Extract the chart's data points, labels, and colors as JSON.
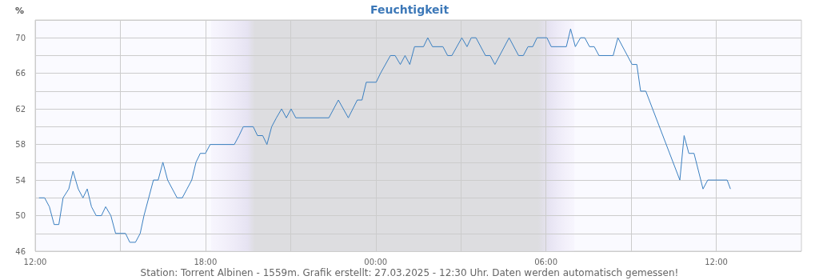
{
  "chart_data": {
    "type": "line",
    "title": "Feuchtigkeit",
    "ylabel": "%",
    "annotations": [
      "Station: Torrent Albinen - 1559m. Grafik erstellt: 27.03.2025 - 12:30 Uhr. Daten werden automatisch gemessen!"
    ],
    "series": [
      {
        "color": "#3a7fc0",
        "x": [
          "2025-03-26T12:08",
          "2025-03-26T12:20",
          "2025-03-26T12:30",
          "2025-03-26T12:40",
          "2025-03-26T12:50",
          "2025-03-26T12:59",
          "2025-03-26T13:11",
          "2025-03-26T13:20",
          "2025-03-26T13:31",
          "2025-03-26T13:41",
          "2025-03-26T13:50",
          "2025-03-26T13:59",
          "2025-03-26T14:09",
          "2025-03-26T14:20",
          "2025-03-26T14:29",
          "2025-03-26T14:40",
          "2025-03-26T14:50",
          "2025-03-26T15:11",
          "2025-03-26T15:20",
          "2025-03-26T15:32",
          "2025-03-26T15:42",
          "2025-03-26T15:50",
          "2025-03-26T16:00",
          "2025-03-26T16:10",
          "2025-03-26T16:20",
          "2025-03-26T16:30",
          "2025-03-26T16:40",
          "2025-03-26T17:00",
          "2025-03-26T17:11",
          "2025-03-26T17:21",
          "2025-03-26T17:31",
          "2025-03-26T17:40",
          "2025-03-26T17:49",
          "2025-03-26T18:00",
          "2025-03-26T18:10",
          "2025-03-26T19:01",
          "2025-03-26T19:11",
          "2025-03-26T19:20",
          "2025-03-26T19:41",
          "2025-03-26T19:50",
          "2025-03-26T20:01",
          "2025-03-26T20:10",
          "2025-03-26T20:20",
          "2025-03-26T20:30",
          "2025-03-26T20:41",
          "2025-03-26T20:51",
          "2025-03-26T21:01",
          "2025-03-26T21:11",
          "2025-03-26T22:21",
          "2025-03-26T22:41",
          "2025-03-26T23:02",
          "2025-03-26T23:21",
          "2025-03-26T23:31",
          "2025-03-26T23:40",
          "2025-03-27T00:01",
          "2025-03-27T00:10",
          "2025-03-27T00:31",
          "2025-03-27T00:41",
          "2025-03-27T00:52",
          "2025-03-27T01:02",
          "2025-03-27T01:12",
          "2025-03-27T01:22",
          "2025-03-27T01:41",
          "2025-03-27T01:50",
          "2025-03-27T02:00",
          "2025-03-27T02:22",
          "2025-03-27T02:32",
          "2025-03-27T02:41",
          "2025-03-27T03:02",
          "2025-03-27T03:13",
          "2025-03-27T03:22",
          "2025-03-27T03:32",
          "2025-03-27T03:52",
          "2025-03-27T04:02",
          "2025-03-27T04:12",
          "2025-03-27T04:42",
          "2025-03-27T05:02",
          "2025-03-27T05:12",
          "2025-03-27T05:22",
          "2025-03-27T05:32",
          "2025-03-27T05:41",
          "2025-03-27T06:02",
          "2025-03-27T06:11",
          "2025-03-27T06:43",
          "2025-03-27T06:52",
          "2025-03-27T07:02",
          "2025-03-27T07:13",
          "2025-03-27T07:22",
          "2025-03-27T07:32",
          "2025-03-27T07:42",
          "2025-03-27T07:52",
          "2025-03-27T08:22",
          "2025-03-27T08:32",
          "2025-03-27T09:02",
          "2025-03-27T09:12",
          "2025-03-27T09:20",
          "2025-03-27T09:31",
          "2025-03-27T10:43",
          "2025-03-27T10:52",
          "2025-03-27T11:02",
          "2025-03-27T11:13",
          "2025-03-27T11:32",
          "2025-03-27T11:42",
          "2025-03-27T12:23",
          "2025-03-27T12:30"
        ],
        "values": [
          52,
          52,
          51,
          49,
          49,
          52,
          53,
          55,
          53,
          52,
          53,
          51,
          50,
          50,
          51,
          50,
          48,
          48,
          47,
          47,
          48,
          50,
          52,
          54,
          54,
          56,
          54,
          52,
          52,
          53,
          54,
          56,
          57,
          57,
          58,
          58,
          59,
          60,
          60,
          59,
          59,
          58,
          60,
          61,
          62,
          61,
          62,
          61,
          61,
          63,
          61,
          63,
          63,
          65,
          65,
          66,
          68,
          68,
          67,
          68,
          67,
          69,
          69,
          70,
          69,
          69,
          68,
          68,
          70,
          69,
          70,
          70,
          68,
          68,
          67,
          70,
          68,
          68,
          69,
          69,
          70,
          70,
          69,
          69,
          71,
          69,
          70,
          70,
          69,
          69,
          68,
          68,
          70,
          67,
          67,
          64,
          64,
          54,
          59,
          57,
          57,
          53,
          54,
          54,
          53
        ]
      }
    ],
    "xlim": [
      "2025-03-26T12:00",
      "2025-03-27T15:00"
    ],
    "xticks": [
      {
        "value": "2025-03-26T12:00",
        "label": "12:00"
      },
      {
        "value": "2025-03-26T15:00",
        "label": null
      },
      {
        "value": "2025-03-26T18:00",
        "label": "18:00"
      },
      {
        "value": "2025-03-26T21:00",
        "label": null
      },
      {
        "value": "2025-03-27T00:00",
        "label": "00:00"
      },
      {
        "value": "2025-03-27T03:00",
        "label": null
      },
      {
        "value": "2025-03-27T06:00",
        "label": "06:00"
      },
      {
        "value": "2025-03-27T09:00",
        "label": null
      },
      {
        "value": "2025-03-27T12:00",
        "label": "12:00"
      }
    ],
    "ylim": [
      46,
      72
    ],
    "yticks": [
      46,
      {
        "value": 48,
        "label": null
      },
      50,
      {
        "value": 52,
        "label": null
      },
      54,
      {
        "value": 56,
        "label": null
      },
      58,
      {
        "value": 60,
        "label": null
      },
      62,
      {
        "value": 64,
        "label": null
      },
      66,
      {
        "value": 68,
        "label": null
      },
      70,
      {
        "value": 72,
        "label": null
      }
    ],
    "bands": [
      {
        "axis": "x",
        "from": "2025-03-26T18:12",
        "to": "2025-03-27T07:00",
        "color": "#dddde0"
      }
    ],
    "grid": true,
    "marker": "none",
    "line_style": "solid"
  }
}
